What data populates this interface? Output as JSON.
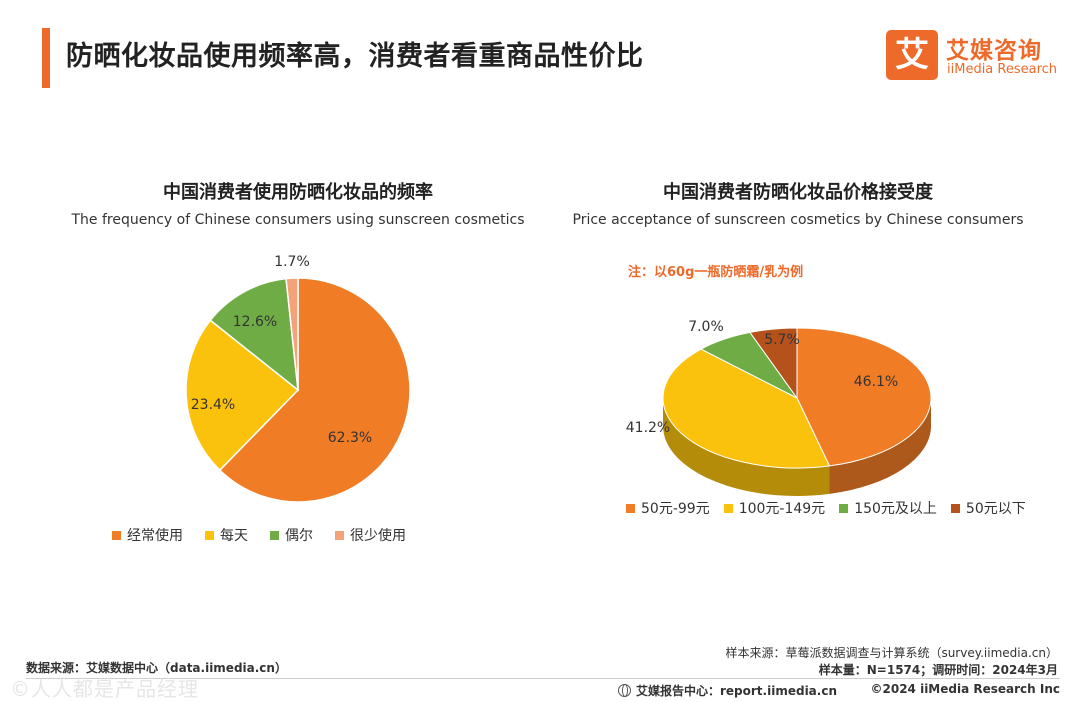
{
  "header": {
    "title": "防晒化妆品使用频率高，消费者看重商品性价比",
    "logo_mark": "艾",
    "logo_cn": "艾媒咨询",
    "logo_en": "iiMedia Research"
  },
  "chart_data": [
    {
      "type": "pie",
      "title": "中国消费者使用防晒化妆品的频率",
      "subtitle": "The frequency of Chinese consumers using sunscreen cosmetics",
      "categories": [
        "经常使用",
        "每天",
        "偶尔",
        "很少使用"
      ],
      "values": [
        62.3,
        23.4,
        12.6,
        1.7
      ],
      "labels": [
        "62.3%",
        "23.4%",
        "12.6%",
        "1.7%"
      ],
      "colors": [
        "#f07c25",
        "#fbc20d",
        "#6fac46",
        "#f4a27a"
      ],
      "legend": "bottom"
    },
    {
      "type": "pie",
      "style": "3d",
      "title": "中国消费者防晒化妆品价格接受度",
      "subtitle": "Price acceptance of sunscreen cosmetics by Chinese consumers",
      "note": "注：以60g一瓶防晒霜/乳为例",
      "categories": [
        "50元-99元",
        "100元-149元",
        "150元及以上",
        "50元以下"
      ],
      "values": [
        46.1,
        41.2,
        7.0,
        5.7
      ],
      "labels": [
        "46.1%",
        "41.2%",
        "7.0%",
        "5.7%"
      ],
      "colors": [
        "#f07c25",
        "#fbc20d",
        "#6fac46",
        "#b5511a"
      ],
      "legend": "bottom"
    }
  ],
  "footer": {
    "sample_source": "样本来源：草莓派数据调查与计算系统（survey.iimedia.cn）",
    "sample_size": "样本量：N=1574；调研时间：2024年3月",
    "data_source": "数据来源：艾媒数据中心（data.iimedia.cn）",
    "report_center": "艾媒报告中心：report.iimedia.cn",
    "copyright": "©2024  iiMedia Research  Inc",
    "watermark": "©人人都是产品经理"
  }
}
